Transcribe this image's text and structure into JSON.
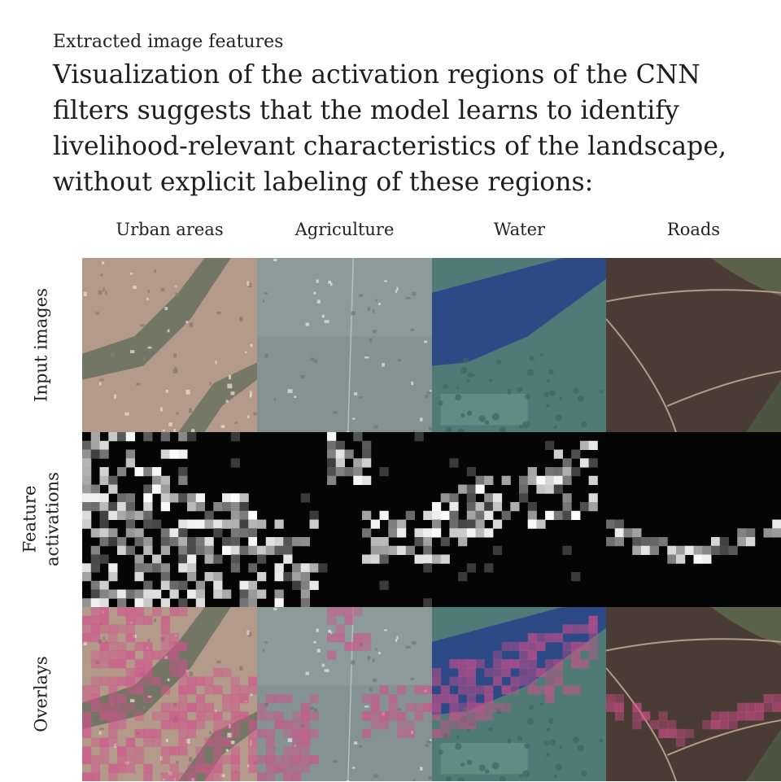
{
  "kicker": "Extracted image features",
  "headline": "Visualization of the activation regions of the CNN filters suggests that the model learns to identify livelihood-relevant characteristics of the landscape, without explicit labeling of these regions:",
  "columns": [
    "Urban areas",
    "Agriculture",
    "Water",
    "Roads"
  ],
  "rows": [
    "Input images",
    "Feature activations",
    "Overlays"
  ],
  "colors": {
    "urban_ground": "#b39a8a",
    "agriculture_ground": "#8c9a9a",
    "water_body": "#2d4a86",
    "forest": "#4f7a78",
    "roads_field": "#4a3b34",
    "activation_bg": "#050505",
    "overlay_magenta": "#d2508c"
  }
}
